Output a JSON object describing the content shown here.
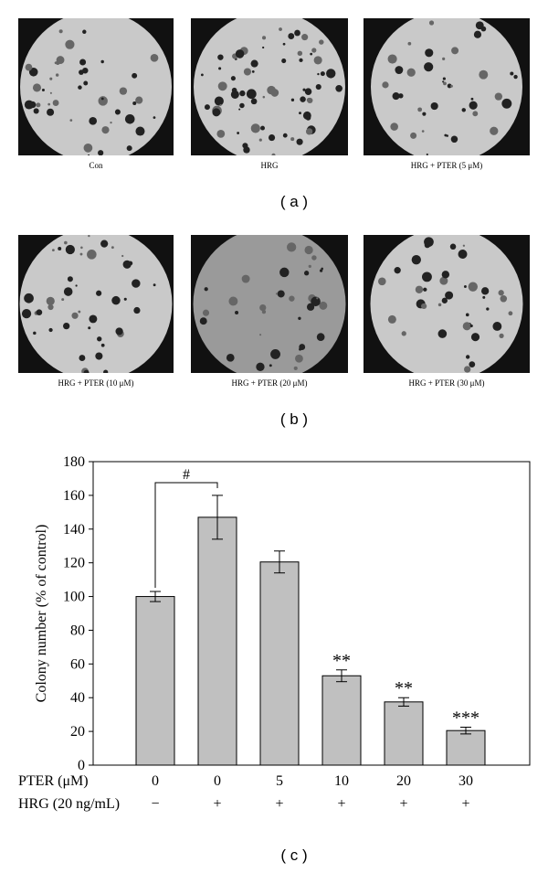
{
  "panels": [
    {
      "label": "Con"
    },
    {
      "label": "HRG"
    },
    {
      "label": "HRG + PTER (5 μM)"
    },
    {
      "label": "HRG + PTER (10 μM)"
    },
    {
      "label": "HRG + PTER (20 μM)"
    },
    {
      "label": "HRG + PTER (30 μM)"
    }
  ],
  "panel_letters": [
    "( a )",
    "( b )"
  ],
  "chart_data": {
    "type": "bar",
    "caption": "( c )",
    "y_label": "Colony number (% of control)",
    "categories": [
      "0",
      "0",
      "5",
      "10",
      "20",
      "30"
    ],
    "category_title": "PTER (μM)",
    "second_row": {
      "title": "HRG (20 ng/mL)",
      "labels": [
        "−",
        "+",
        "+",
        "+",
        "+",
        "+"
      ]
    },
    "values": [
      100,
      147,
      120.5,
      53,
      37.5,
      20.5
    ],
    "errors": [
      3,
      13,
      6.5,
      3.5,
      2.5,
      2
    ],
    "color": "#c0c0c0",
    "ylim": [
      0,
      180
    ],
    "yticks": [
      0,
      20,
      40,
      60,
      80,
      100,
      120,
      140,
      160,
      180
    ],
    "annotations": [
      {
        "bar": 3,
        "text": "**"
      },
      {
        "bar": 4,
        "text": "**"
      },
      {
        "bar": 5,
        "text": "***"
      }
    ],
    "bracket": {
      "from": 0,
      "to": 1,
      "text": "#"
    }
  }
}
